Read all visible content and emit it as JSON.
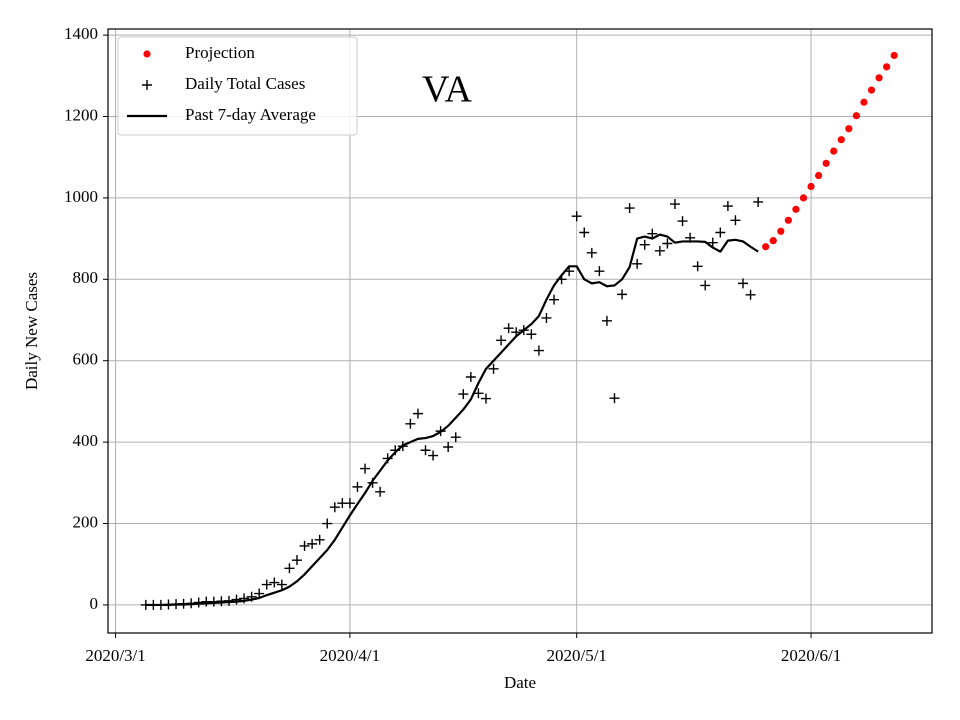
{
  "chart_data": {
    "type": "line",
    "title": "VA",
    "xlabel": "Date",
    "ylabel": "Daily New Cases",
    "xlim": [
      "2020/2/29",
      "2020/6/17"
    ],
    "xticks": [
      "2020/3/1",
      "2020/4/1",
      "2020/5/1",
      "2020/6/1"
    ],
    "ylim": [
      -69,
      1415
    ],
    "yticks": [
      0,
      200,
      400,
      600,
      800,
      1000,
      1200,
      1400
    ],
    "grid": true,
    "legend": "upper left",
    "series": [
      {
        "name": "Projection",
        "color": "#ff0000",
        "style": "dots",
        "x": [
          "2020/5/26",
          "2020/5/27",
          "2020/5/28",
          "2020/5/29",
          "2020/5/30",
          "2020/5/31",
          "2020/6/1",
          "2020/6/2",
          "2020/6/3",
          "2020/6/4",
          "2020/6/5",
          "2020/6/6",
          "2020/6/7",
          "2020/6/8",
          "2020/6/9",
          "2020/6/10",
          "2020/6/11",
          "2020/6/12"
        ],
        "values": [
          880,
          895,
          918,
          945,
          972,
          1000,
          1028,
          1055,
          1085,
          1115,
          1143,
          1170,
          1202,
          1235,
          1265,
          1295,
          1322,
          1350
        ]
      },
      {
        "name": "Daily Total Cases",
        "color": "#000000",
        "style": "crosses",
        "x": [
          "2020/3/5",
          "2020/3/6",
          "2020/3/7",
          "2020/3/8",
          "2020/3/9",
          "2020/3/10",
          "2020/3/11",
          "2020/3/12",
          "2020/3/13",
          "2020/3/14",
          "2020/3/15",
          "2020/3/16",
          "2020/3/17",
          "2020/3/18",
          "2020/3/19",
          "2020/3/20",
          "2020/3/21",
          "2020/3/22",
          "2020/3/23",
          "2020/3/24",
          "2020/3/25",
          "2020/3/26",
          "2020/3/27",
          "2020/3/28",
          "2020/3/29",
          "2020/3/30",
          "2020/3/31",
          "2020/4/1",
          "2020/4/2",
          "2020/4/3",
          "2020/4/4",
          "2020/4/5",
          "2020/4/6",
          "2020/4/7",
          "2020/4/8",
          "2020/4/9",
          "2020/4/10",
          "2020/4/11",
          "2020/4/12",
          "2020/4/13",
          "2020/4/14",
          "2020/4/15",
          "2020/4/16",
          "2020/4/17",
          "2020/4/18",
          "2020/4/19",
          "2020/4/20",
          "2020/4/21",
          "2020/4/22",
          "2020/4/23",
          "2020/4/24",
          "2020/4/25",
          "2020/4/26",
          "2020/4/27",
          "2020/4/28",
          "2020/4/29",
          "2020/4/30",
          "2020/5/1",
          "2020/5/2",
          "2020/5/3",
          "2020/5/4",
          "2020/5/5",
          "2020/5/6",
          "2020/5/7",
          "2020/5/8",
          "2020/5/9",
          "2020/5/10",
          "2020/5/11",
          "2020/5/12",
          "2020/5/13",
          "2020/5/14",
          "2020/5/15",
          "2020/5/16",
          "2020/5/17",
          "2020/5/18",
          "2020/5/19",
          "2020/5/20",
          "2020/5/21",
          "2020/5/22",
          "2020/5/23",
          "2020/5/24",
          "2020/5/25"
        ],
        "values": [
          0,
          0,
          0,
          1,
          2,
          3,
          4,
          6,
          8,
          8,
          9,
          10,
          13,
          16,
          20,
          28,
          50,
          55,
          50,
          90,
          110,
          145,
          150,
          160,
          200,
          240,
          250,
          250,
          290,
          335,
          300,
          278,
          360,
          380,
          390,
          445,
          470,
          380,
          367,
          427,
          388,
          412,
          518,
          560,
          520,
          507,
          580,
          650,
          680,
          670,
          675,
          665,
          625,
          705,
          750,
          800,
          820,
          955,
          915,
          865,
          820,
          698,
          508,
          763,
          975,
          838,
          885,
          912,
          870,
          888,
          985,
          943,
          902,
          832,
          785,
          890,
          915,
          980,
          945,
          790,
          762,
          990
        ]
      },
      {
        "name": "Past 7-day Average",
        "color": "#000000",
        "style": "line",
        "x": [
          "2020/3/5",
          "2020/3/6",
          "2020/3/7",
          "2020/3/8",
          "2020/3/9",
          "2020/3/10",
          "2020/3/11",
          "2020/3/12",
          "2020/3/13",
          "2020/3/14",
          "2020/3/15",
          "2020/3/16",
          "2020/3/17",
          "2020/3/18",
          "2020/3/19",
          "2020/3/20",
          "2020/3/21",
          "2020/3/22",
          "2020/3/23",
          "2020/3/24",
          "2020/3/25",
          "2020/3/26",
          "2020/3/27",
          "2020/3/28",
          "2020/3/29",
          "2020/3/30",
          "2020/3/31",
          "2020/4/1",
          "2020/4/2",
          "2020/4/3",
          "2020/4/4",
          "2020/4/5",
          "2020/4/6",
          "2020/4/7",
          "2020/4/8",
          "2020/4/9",
          "2020/4/10",
          "2020/4/11",
          "2020/4/12",
          "2020/4/13",
          "2020/4/14",
          "2020/4/15",
          "2020/4/16",
          "2020/4/17",
          "2020/4/18",
          "2020/4/19",
          "2020/4/20",
          "2020/4/21",
          "2020/4/22",
          "2020/4/23",
          "2020/4/24",
          "2020/4/25",
          "2020/4/26",
          "2020/4/27",
          "2020/4/28",
          "2020/4/29",
          "2020/4/30",
          "2020/5/1",
          "2020/5/2",
          "2020/5/3",
          "2020/5/4",
          "2020/5/5",
          "2020/5/6",
          "2020/5/7",
          "2020/5/8",
          "2020/5/9",
          "2020/5/10",
          "2020/5/11",
          "2020/5/12",
          "2020/5/13",
          "2020/5/14",
          "2020/5/15",
          "2020/5/16",
          "2020/5/17",
          "2020/5/18",
          "2020/5/19",
          "2020/5/20",
          "2020/5/21",
          "2020/5/22",
          "2020/5/23",
          "2020/5/24",
          "2020/5/25"
        ],
        "values": [
          0,
          0,
          0,
          0,
          1,
          1,
          2,
          3,
          4,
          5,
          6,
          7,
          8,
          10,
          13,
          17,
          24,
          30,
          36,
          45,
          58,
          75,
          95,
          115,
          135,
          160,
          190,
          220,
          248,
          275,
          305,
          330,
          355,
          375,
          392,
          400,
          408,
          410,
          415,
          425,
          440,
          460,
          480,
          505,
          545,
          580,
          600,
          620,
          640,
          660,
          675,
          690,
          710,
          750,
          785,
          810,
          832,
          832,
          800,
          790,
          793,
          783,
          785,
          800,
          830,
          900,
          905,
          900,
          910,
          905,
          890,
          893,
          893,
          893,
          892,
          878,
          868,
          895,
          897,
          893,
          880,
          868
        ]
      }
    ]
  }
}
